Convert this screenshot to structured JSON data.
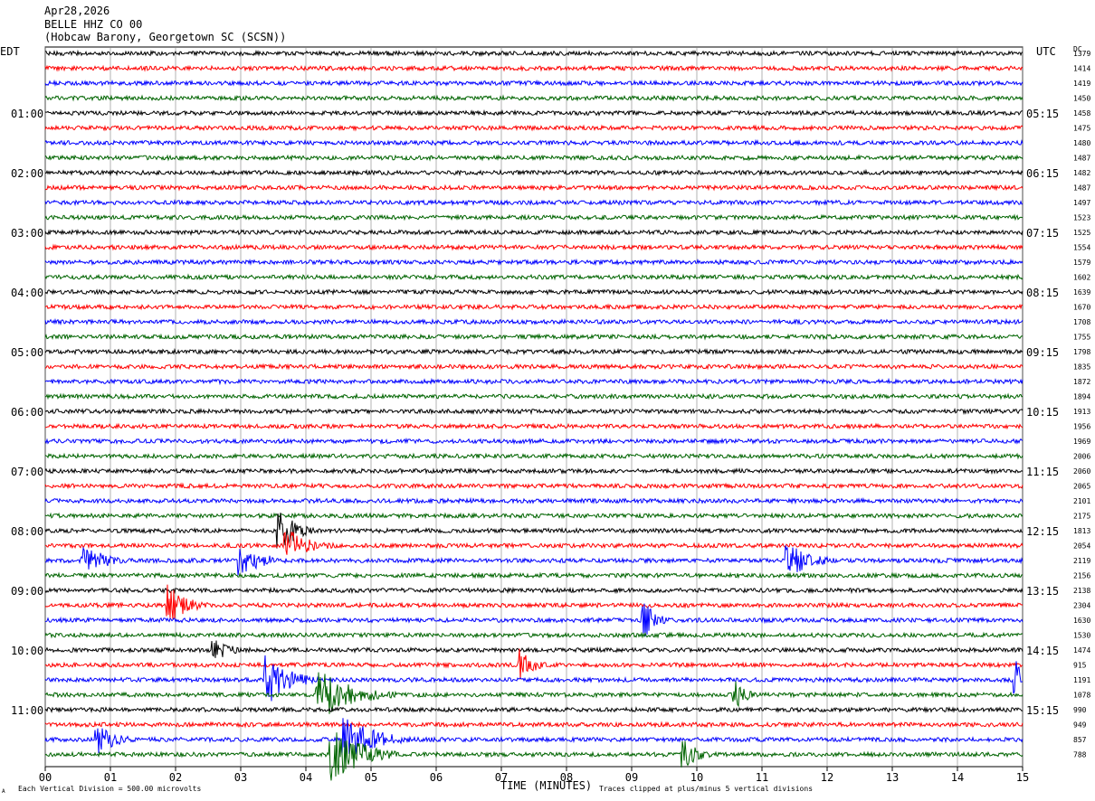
{
  "header": {
    "date": "Apr28,2026",
    "station": "BELLE HHZ CO 00",
    "location": "(Hobcaw Barony, Georgetown SC (SCSN))"
  },
  "axis": {
    "left_label": "EDT",
    "right_label": "UTC",
    "dc_label": "DC",
    "xlabel": "TIME (MINUTES)",
    "scale_note": "Each Vertical Division =  500.00 microvolts",
    "clip_note": "Traces clipped at plus/minus 5 vertical divisions",
    "corner_mark": "A"
  },
  "colors": {
    "trace_cycle": [
      "#000000",
      "#ff0000",
      "#0000ff",
      "#006400"
    ],
    "grid": "#808080"
  },
  "chart_data": {
    "type": "line",
    "title": "BELLE HHZ CO 00",
    "xlabel": "TIME (MINUTES)",
    "xlim": [
      0,
      15
    ],
    "x_ticks": [
      "00",
      "01",
      "02",
      "03",
      "04",
      "05",
      "06",
      "07",
      "08",
      "09",
      "10",
      "11",
      "12",
      "13",
      "14",
      "15"
    ],
    "left_hour_labels": [
      "01:00",
      "02:00",
      "03:00",
      "04:00",
      "05:00",
      "06:00",
      "07:00",
      "08:00",
      "09:00",
      "10:00",
      "11:00"
    ],
    "right_hour_labels": [
      "05:15",
      "06:15",
      "07:15",
      "08:15",
      "09:15",
      "10:15",
      "11:15",
      "12:15",
      "13:15",
      "14:15",
      "15:15"
    ],
    "row_count": 48,
    "rows_per_hour": 4,
    "dc_offsets": [
      "1379",
      "1414",
      "1419",
      "1450",
      "1458",
      "1475",
      "1480",
      "1487",
      "1482",
      "1487",
      "1497",
      "1523",
      "1525",
      "1554",
      "1579",
      "1602",
      "1639",
      "1670",
      "1708",
      "1755",
      "1798",
      "1835",
      "1872",
      "1894",
      "1913",
      "1956",
      "1969",
      "2006",
      "2060",
      "2065",
      "2101",
      "2175",
      "1813",
      "2054",
      "2119",
      "2156",
      "2138",
      "2304",
      "1630",
      "1530",
      "1474",
      "915",
      "1191",
      "1078",
      "990",
      "949",
      "857",
      "788"
    ],
    "events": [
      {
        "row": 32,
        "minute": 3.6,
        "amplitude": 3.0,
        "duration_min": 0.6
      },
      {
        "row": 33,
        "minute": 3.7,
        "amplitude": 2.5,
        "duration_min": 0.8
      },
      {
        "row": 34,
        "minute": 0.6,
        "amplitude": 2.0,
        "duration_min": 0.8
      },
      {
        "row": 34,
        "minute": 3.0,
        "amplitude": 2.0,
        "duration_min": 0.9
      },
      {
        "row": 34,
        "minute": 11.4,
        "amplitude": 2.5,
        "duration_min": 0.8
      },
      {
        "row": 37,
        "minute": 1.9,
        "amplitude": 3.0,
        "duration_min": 0.6
      },
      {
        "row": 38,
        "minute": 9.2,
        "amplitude": 2.5,
        "duration_min": 0.4
      },
      {
        "row": 40,
        "minute": 2.6,
        "amplitude": 1.5,
        "duration_min": 0.6
      },
      {
        "row": 41,
        "minute": 7.3,
        "amplitude": 2.5,
        "duration_min": 0.4
      },
      {
        "row": 42,
        "minute": 3.4,
        "amplitude": 3.5,
        "duration_min": 0.8
      },
      {
        "row": 42,
        "minute": 14.9,
        "amplitude": 3.0,
        "duration_min": 0.3
      },
      {
        "row": 43,
        "minute": 4.2,
        "amplitude": 3.5,
        "duration_min": 1.2
      },
      {
        "row": 43,
        "minute": 10.6,
        "amplitude": 2.0,
        "duration_min": 0.4
      },
      {
        "row": 46,
        "minute": 0.8,
        "amplitude": 2.0,
        "duration_min": 0.7
      },
      {
        "row": 46,
        "minute": 4.6,
        "amplitude": 3.5,
        "duration_min": 1.0
      },
      {
        "row": 47,
        "minute": 4.4,
        "amplitude": 4.0,
        "duration_min": 1.0
      },
      {
        "row": 47,
        "minute": 9.8,
        "amplitude": 2.0,
        "duration_min": 0.6
      }
    ]
  }
}
